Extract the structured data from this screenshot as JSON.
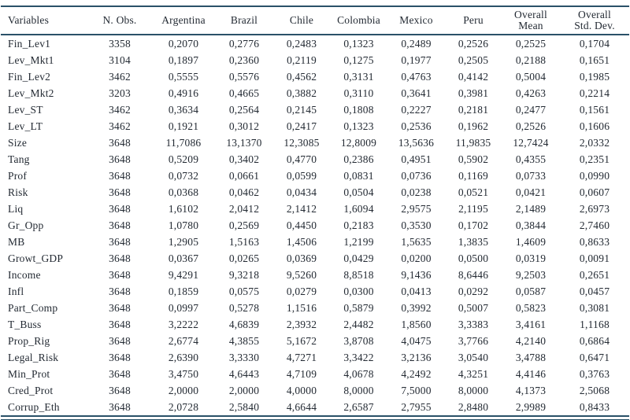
{
  "colors": {
    "rule": "#2a5168",
    "text": "#232a33",
    "background": "#ffffff"
  },
  "table": {
    "columns": [
      "Variables",
      "N. Obs.",
      "Argentina",
      "Brazil",
      "Chile",
      "Colombia",
      "Mexico",
      "Peru",
      "Overall\nMean",
      "Overall\nStd. Dev."
    ],
    "rows": [
      [
        "Fin_Lev1",
        "3358",
        "0,2070",
        "0,2776",
        "0,2483",
        "0,1323",
        "0,2489",
        "0,2526",
        "0,2525",
        "0,1704"
      ],
      [
        "Lev_Mkt1",
        "3104",
        "0,1897",
        "0,2360",
        "0,2119",
        "0,1275",
        "0,1977",
        "0,2505",
        "0,2188",
        "0,1651"
      ],
      [
        "Fin_Lev2",
        "3462",
        "0,5555",
        "0,5576",
        "0,4562",
        "0,3131",
        "0,4763",
        "0,4142",
        "0,5004",
        "0,1985"
      ],
      [
        "Lev_Mkt2",
        "3203",
        "0,4916",
        "0,4665",
        "0,3882",
        "0,3110",
        "0,3641",
        "0,3981",
        "0,4263",
        "0,2214"
      ],
      [
        "Lev_ST",
        "3462",
        "0,3634",
        "0,2564",
        "0,2145",
        "0,1808",
        "0,2227",
        "0,2181",
        "0,2477",
        "0,1561"
      ],
      [
        "Lev_LT",
        "3462",
        "0,1921",
        "0,3012",
        "0,2417",
        "0,1323",
        "0,2536",
        "0,1962",
        "0,2526",
        "0,1606"
      ],
      [
        "Size",
        "3648",
        "11,7086",
        "13,1370",
        "12,3085",
        "12,8009",
        "13,5636",
        "11,9835",
        "12,7424",
        "2,0332"
      ],
      [
        "Tang",
        "3648",
        "0,5209",
        "0,3402",
        "0,4770",
        "0,2386",
        "0,4951",
        "0,5902",
        "0,4355",
        "0,2351"
      ],
      [
        "Prof",
        "3648",
        "0,0732",
        "0,0661",
        "0,0599",
        "0,0831",
        "0,0736",
        "0,1169",
        "0,0733",
        "0,0990"
      ],
      [
        "Risk",
        "3648",
        "0,0368",
        "0,0462",
        "0,0434",
        "0,0504",
        "0,0238",
        "0,0521",
        "0,0421",
        "0,0607"
      ],
      [
        "Liq",
        "3648",
        "1,6102",
        "2,0412",
        "2,1412",
        "1,6094",
        "2,9575",
        "2,1195",
        "2,1489",
        "2,6973"
      ],
      [
        "Gr_Opp",
        "3648",
        "1,0780",
        "0,2569",
        "0,4450",
        "0,2183",
        "0,3530",
        "0,1702",
        "0,3844",
        "2,7460"
      ],
      [
        "MB",
        "3648",
        "1,2905",
        "1,5163",
        "1,4506",
        "1,2199",
        "1,5635",
        "1,3835",
        "1,4609",
        "0,8633"
      ],
      [
        "Growt_GDP",
        "3648",
        "0,0367",
        "0,0265",
        "0,0369",
        "0,0429",
        "0,0200",
        "0,0500",
        "0,0319",
        "0,0091"
      ],
      [
        "Income",
        "3648",
        "9,4291",
        "9,3218",
        "9,5260",
        "8,8518",
        "9,1436",
        "8,6446",
        "9,2503",
        "0,2651"
      ],
      [
        "Infl",
        "3648",
        "0,1859",
        "0,0575",
        "0,0279",
        "0,0300",
        "0,0413",
        "0,0292",
        "0,0587",
        "0,0457"
      ],
      [
        "Part_Comp",
        "3648",
        "0,0997",
        "0,5278",
        "1,1516",
        "0,5879",
        "0,3992",
        "0,5007",
        "0,5823",
        "0,3081"
      ],
      [
        "T_Buss",
        "3648",
        "3,2222",
        "4,6839",
        "2,3932",
        "2,4482",
        "1,8560",
        "3,3383",
        "3,4161",
        "1,1168"
      ],
      [
        "Prop_Rig",
        "3648",
        "2,6774",
        "4,3855",
        "5,1672",
        "3,8708",
        "4,0475",
        "3,7766",
        "4,2140",
        "0,6864"
      ],
      [
        "Legal_Risk",
        "3648",
        "2,6390",
        "3,3330",
        "4,7271",
        "3,3422",
        "3,2136",
        "3,0540",
        "3,4788",
        "0,6471"
      ],
      [
        "Min_Prot",
        "3648",
        "3,4750",
        "4,6443",
        "4,7109",
        "4,0678",
        "4,2492",
        "4,3251",
        "4,4146",
        "0,3763"
      ],
      [
        "Cred_Prot",
        "3648",
        "2,0000",
        "2,0000",
        "4,0000",
        "8,0000",
        "7,5000",
        "8,0000",
        "4,1373",
        "2,5068"
      ],
      [
        "Corrup_Eth",
        "3648",
        "2,0728",
        "2,5840",
        "4,6644",
        "2,6587",
        "2,7955",
        "2,8480",
        "2,9989",
        "0,8433"
      ]
    ]
  }
}
